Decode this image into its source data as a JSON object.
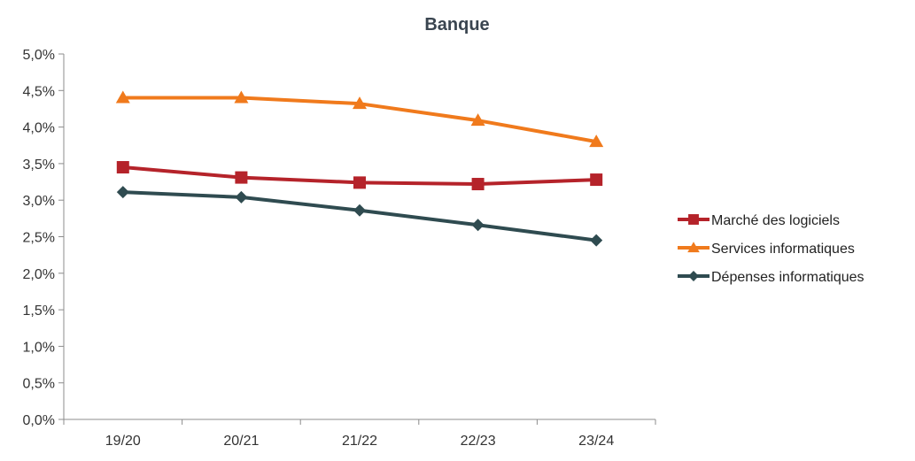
{
  "chart_data": {
    "type": "line",
    "title": "Banque",
    "xlabel": "",
    "ylabel": "",
    "categories": [
      "19/20",
      "20/21",
      "21/22",
      "22/23",
      "23/24"
    ],
    "ylim": [
      0,
      5
    ],
    "y_ticks": [
      0,
      0.5,
      1.0,
      1.5,
      2.0,
      2.5,
      3.0,
      3.5,
      4.0,
      4.5,
      5.0
    ],
    "y_tick_labels": [
      "0,0%",
      "0,5%",
      "1,0%",
      "1,5%",
      "2,0%",
      "2,5%",
      "3,0%",
      "3,5%",
      "4,0%",
      "4,5%",
      "5,0%"
    ],
    "grid": false,
    "legend_position": "right",
    "series": [
      {
        "name": "Marché des logiciels",
        "color": "#b5232a",
        "marker": "square",
        "values": [
          3.45,
          3.31,
          3.24,
          3.22,
          3.28
        ]
      },
      {
        "name": "Services informatiques",
        "color": "#f07a1c",
        "marker": "triangle",
        "values": [
          4.4,
          4.4,
          4.32,
          4.09,
          3.8
        ]
      },
      {
        "name": "Dépenses informatiques",
        "color": "#2f4b50",
        "marker": "diamond",
        "values": [
          3.11,
          3.04,
          2.86,
          2.66,
          2.45
        ]
      }
    ]
  }
}
